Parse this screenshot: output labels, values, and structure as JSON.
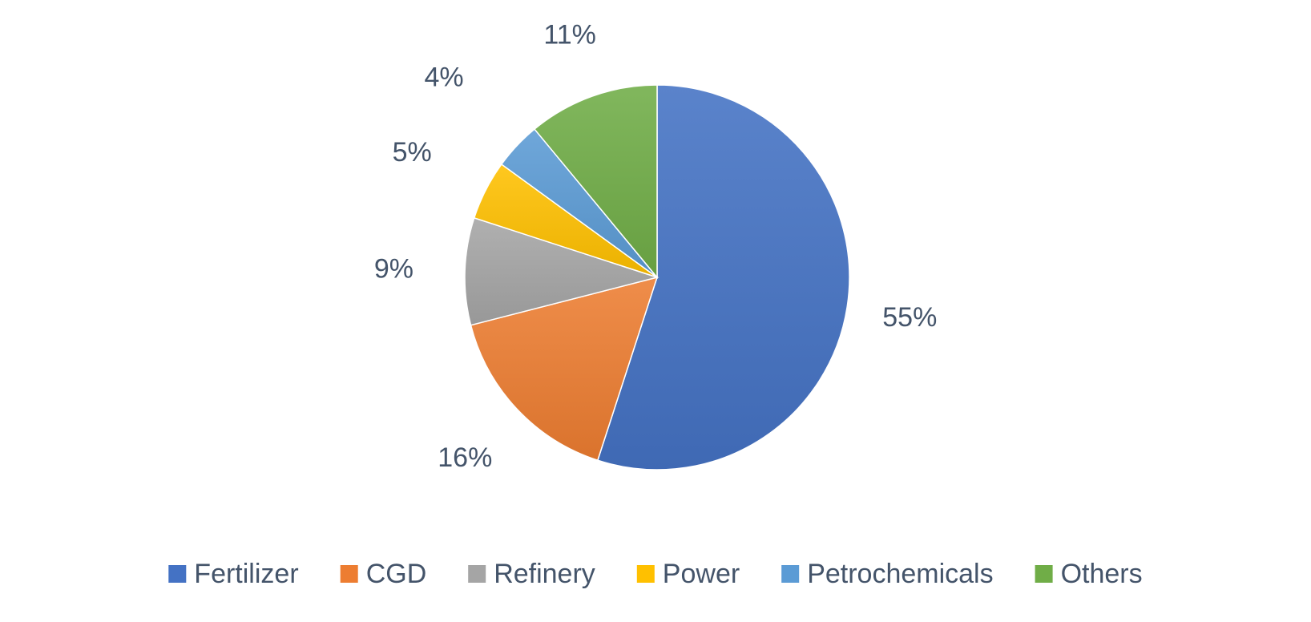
{
  "chart_data": {
    "type": "pie",
    "categories": [
      "Fertilizer",
      "CGD",
      "Refinery",
      "Power",
      "Petrochemicals",
      "Others"
    ],
    "values": [
      55,
      16,
      9,
      5,
      4,
      11
    ],
    "data_labels": [
      "55%",
      "16%",
      "9%",
      "5%",
      "4%",
      "11%"
    ],
    "colors": [
      "#4472c4",
      "#ed7d31",
      "#a5a5a5",
      "#ffc000",
      "#5b9bd5",
      "#70ad47"
    ],
    "start_angle": "12 o'clock",
    "direction": "clockwise",
    "legend": "bottom"
  }
}
